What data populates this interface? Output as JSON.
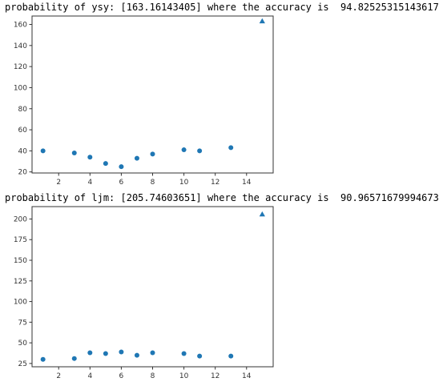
{
  "output": {
    "line1": "probability of ysy: [163.16143405] where the accuracy is  94.82525315143617",
    "line2": "probability of ljm: [205.74603651] where the accuracy is  90.96571679994673"
  },
  "colors": {
    "marker": "#1f77b4",
    "axis": "#333333"
  },
  "chart_data": [
    {
      "type": "scatter",
      "title": "",
      "xlabel": "",
      "ylabel": "",
      "xlim": [
        0.3,
        15.7
      ],
      "ylim": [
        19,
        168
      ],
      "xticks": [
        2,
        4,
        6,
        8,
        10,
        12,
        14
      ],
      "yticks": [
        20,
        40,
        60,
        80,
        100,
        120,
        140,
        160
      ],
      "grid": false,
      "series": [
        {
          "marker": "circle",
          "x": [
            1,
            3,
            4,
            5,
            6,
            7,
            8,
            10,
            11,
            13
          ],
          "y": [
            40,
            38,
            34,
            28,
            25,
            33,
            37,
            41,
            40,
            43
          ]
        },
        {
          "marker": "triangle",
          "x": [
            15
          ],
          "y": [
            163.16
          ]
        }
      ]
    },
    {
      "type": "scatter",
      "title": "",
      "xlabel": "",
      "ylabel": "",
      "xlim": [
        0.3,
        15.7
      ],
      "ylim": [
        21,
        215
      ],
      "xticks": [
        2,
        4,
        6,
        8,
        10,
        12,
        14
      ],
      "yticks": [
        25,
        50,
        75,
        100,
        125,
        150,
        175,
        200
      ],
      "grid": false,
      "series": [
        {
          "marker": "circle",
          "x": [
            1,
            3,
            4,
            5,
            6,
            7,
            8,
            10,
            11,
            13
          ],
          "y": [
            30,
            31,
            38,
            37,
            39,
            35,
            38,
            37,
            34,
            34
          ]
        },
        {
          "marker": "triangle",
          "x": [
            15
          ],
          "y": [
            205.75
          ]
        }
      ]
    }
  ]
}
